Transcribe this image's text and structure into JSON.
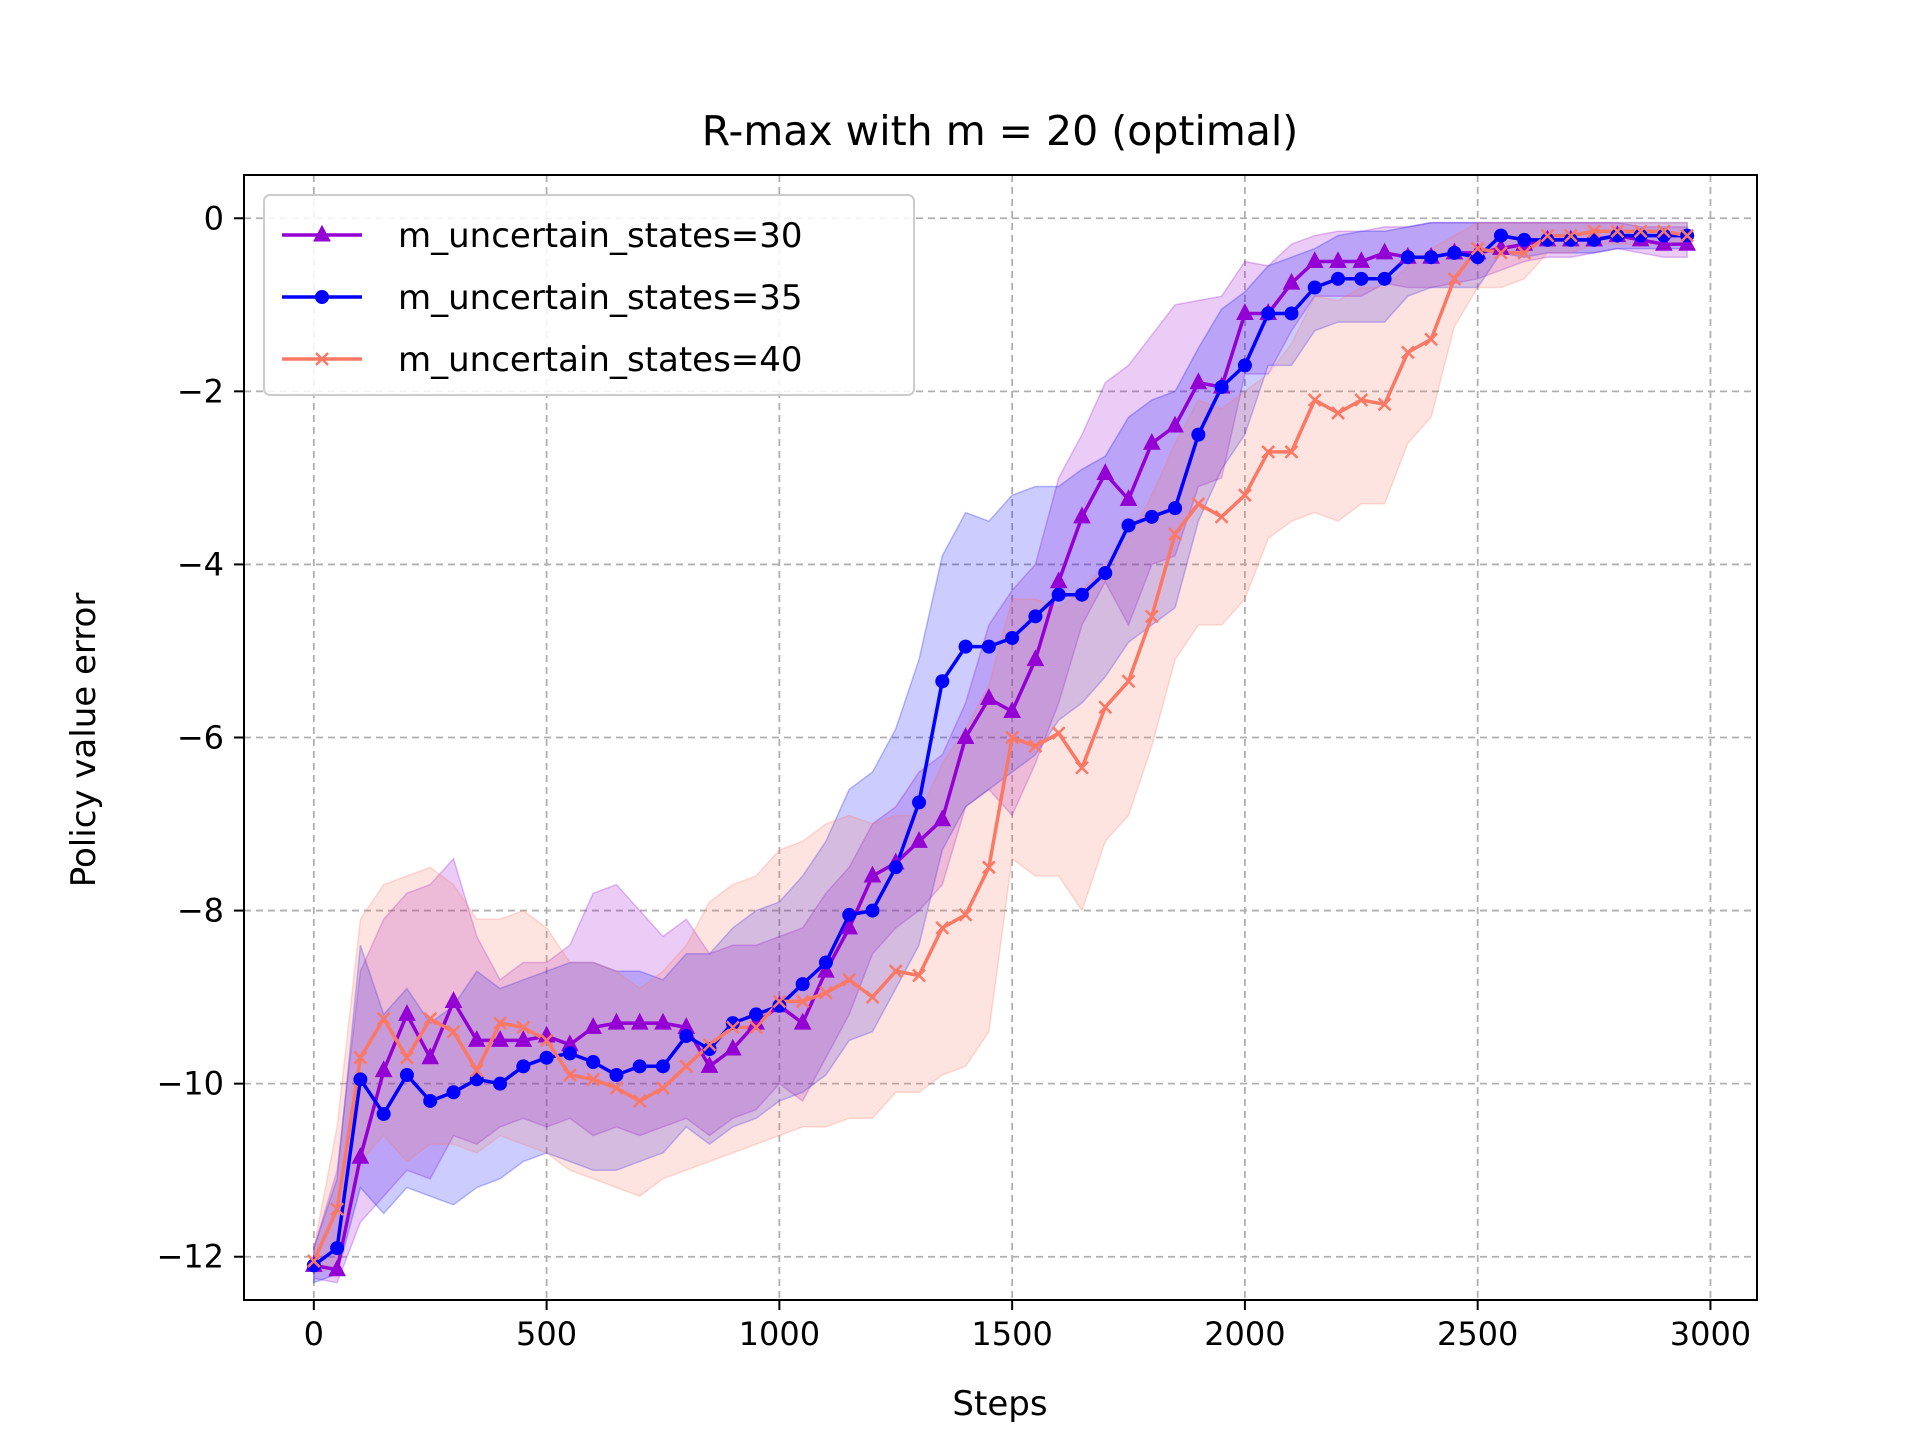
{
  "chart_data": {
    "type": "line",
    "title": "R-max with m = 20 (optimal)",
    "xlabel": "Steps",
    "ylabel": "Policy value error",
    "xlim": [
      -150,
      3100
    ],
    "ylim": [
      -12.5,
      0.5
    ],
    "xticks": [
      0,
      500,
      1000,
      1500,
      2000,
      2500,
      3000
    ],
    "yticks": [
      0,
      -2,
      -4,
      -6,
      -8,
      -10,
      -12
    ],
    "xtick_labels": [
      "0",
      "500",
      "1000",
      "1500",
      "2000",
      "2500",
      "3000"
    ],
    "ytick_labels": [
      "0",
      "−2",
      "−4",
      "−6",
      "−8",
      "−10",
      "−12"
    ],
    "grid": true,
    "legend_position": "top-left",
    "x": [
      0,
      50,
      100,
      150,
      200,
      250,
      300,
      350,
      400,
      450,
      500,
      550,
      600,
      650,
      700,
      750,
      800,
      850,
      900,
      950,
      1000,
      1050,
      1100,
      1150,
      1200,
      1250,
      1300,
      1350,
      1400,
      1450,
      1500,
      1550,
      1600,
      1650,
      1700,
      1750,
      1800,
      1850,
      1900,
      1950,
      2000,
      2050,
      2100,
      2150,
      2200,
      2250,
      2300,
      2350,
      2400,
      2450,
      2500,
      2550,
      2600,
      2650,
      2700,
      2750,
      2800,
      2850,
      2900,
      2950
    ],
    "series": [
      {
        "name": "m_uncertain_states=30",
        "color": "#9400d3",
        "marker": "triangle",
        "values": [
          -12.1,
          -12.15,
          -10.85,
          -9.85,
          -9.2,
          -9.7,
          -9.05,
          -9.5,
          -9.5,
          -9.5,
          -9.45,
          -9.55,
          -9.35,
          -9.3,
          -9.3,
          -9.3,
          -9.35,
          -9.8,
          -9.6,
          -9.3,
          -9.1,
          -9.3,
          -8.7,
          -8.2,
          -7.6,
          -7.45,
          -7.2,
          -6.95,
          -6.0,
          -5.55,
          -5.7,
          -5.1,
          -4.2,
          -3.45,
          -2.95,
          -3.25,
          -2.6,
          -2.4,
          -1.9,
          -1.95,
          -1.1,
          -1.1,
          -0.75,
          -0.5,
          -0.5,
          -0.5,
          -0.4,
          -0.45,
          -0.45,
          -0.4,
          -0.4,
          -0.35,
          -0.3,
          -0.25,
          -0.25,
          -0.25,
          -0.2,
          -0.25,
          -0.3,
          -0.3
        ],
        "upper": [
          -11.9,
          -11.0,
          -8.7,
          -8.1,
          -7.8,
          -7.7,
          -7.4,
          -8.3,
          -8.8,
          -8.6,
          -8.6,
          -8.4,
          -7.8,
          -7.7,
          -8.0,
          -8.3,
          -8.1,
          -8.5,
          -8.4,
          -8.4,
          -8.3,
          -8.2,
          -7.8,
          -7.5,
          -7.0,
          -6.8,
          -6.4,
          -6.2,
          -5.6,
          -4.7,
          -4.3,
          -4.0,
          -3.0,
          -2.5,
          -1.9,
          -1.7,
          -1.35,
          -1.0,
          -0.95,
          -0.9,
          -0.5,
          -0.55,
          -0.3,
          -0.2,
          -0.15,
          -0.15,
          -0.1,
          -0.1,
          -0.05,
          -0.05,
          -0.05,
          -0.05,
          -0.05,
          -0.05,
          -0.05,
          -0.05,
          -0.05,
          -0.1,
          -0.1,
          -0.1
        ],
        "lower": [
          -12.25,
          -12.3,
          -11.6,
          -11.3,
          -11.0,
          -11.1,
          -10.6,
          -10.7,
          -10.5,
          -10.4,
          -10.5,
          -10.4,
          -10.6,
          -10.5,
          -10.6,
          -10.5,
          -10.4,
          -10.6,
          -10.4,
          -10.3,
          -10.0,
          -10.2,
          -9.7,
          -9.2,
          -8.5,
          -8.2,
          -8.0,
          -7.7,
          -6.8,
          -6.6,
          -6.9,
          -6.3,
          -5.6,
          -4.7,
          -4.2,
          -4.7,
          -4.0,
          -3.9,
          -3.1,
          -3.0,
          -1.8,
          -1.8,
          -1.3,
          -0.9,
          -0.9,
          -0.9,
          -0.75,
          -0.8,
          -0.8,
          -0.75,
          -0.7,
          -0.6,
          -0.5,
          -0.45,
          -0.45,
          -0.4,
          -0.35,
          -0.4,
          -0.45,
          -0.45
        ]
      },
      {
        "name": "m_uncertain_states=35",
        "color": "#0000ff",
        "marker": "circle",
        "values": [
          -12.1,
          -11.9,
          -9.95,
          -10.35,
          -9.9,
          -10.2,
          -10.1,
          -9.95,
          -10.0,
          -9.8,
          -9.7,
          -9.65,
          -9.75,
          -9.9,
          -9.8,
          -9.8,
          -9.45,
          -9.6,
          -9.3,
          -9.2,
          -9.1,
          -8.85,
          -8.6,
          -8.05,
          -8.0,
          -7.5,
          -6.75,
          -5.35,
          -4.95,
          -4.95,
          -4.85,
          -4.6,
          -4.35,
          -4.35,
          -4.1,
          -3.55,
          -3.45,
          -3.35,
          -2.5,
          -1.95,
          -1.7,
          -1.1,
          -1.1,
          -0.8,
          -0.7,
          -0.7,
          -0.7,
          -0.45,
          -0.45,
          -0.4,
          -0.45,
          -0.2,
          -0.25,
          -0.25,
          -0.25,
          -0.25,
          -0.2,
          -0.2,
          -0.2,
          -0.2
        ],
        "upper": [
          -11.9,
          -11.1,
          -8.4,
          -9.2,
          -8.9,
          -9.3,
          -9.1,
          -8.7,
          -8.9,
          -8.8,
          -8.7,
          -8.6,
          -8.6,
          -8.7,
          -8.7,
          -8.8,
          -8.5,
          -8.5,
          -8.2,
          -8.0,
          -7.9,
          -7.6,
          -7.2,
          -6.6,
          -6.4,
          -5.9,
          -5.1,
          -3.9,
          -3.4,
          -3.5,
          -3.2,
          -3.1,
          -3.1,
          -2.9,
          -2.75,
          -2.3,
          -2.1,
          -2.0,
          -1.5,
          -1.05,
          -0.85,
          -0.55,
          -0.45,
          -0.35,
          -0.2,
          -0.15,
          -0.15,
          -0.1,
          -0.05,
          -0.05,
          -0.05,
          -0.05,
          -0.05,
          -0.05,
          -0.05,
          -0.05,
          -0.05,
          -0.05,
          -0.05,
          -0.05
        ],
        "lower": [
          -12.3,
          -12.2,
          -11.2,
          -11.5,
          -11.2,
          -11.3,
          -11.4,
          -11.2,
          -11.1,
          -10.9,
          -10.8,
          -10.9,
          -11.0,
          -11.0,
          -10.9,
          -10.8,
          -10.5,
          -10.7,
          -10.5,
          -10.4,
          -10.2,
          -10.1,
          -9.9,
          -9.5,
          -9.4,
          -8.9,
          -8.4,
          -7.3,
          -6.8,
          -6.6,
          -6.4,
          -6.2,
          -5.8,
          -5.6,
          -5.3,
          -4.9,
          -4.7,
          -4.5,
          -3.5,
          -2.9,
          -2.5,
          -1.7,
          -1.7,
          -1.3,
          -1.2,
          -1.2,
          -1.2,
          -0.9,
          -0.8,
          -0.8,
          -0.8,
          -0.4,
          -0.45,
          -0.4,
          -0.4,
          -0.4,
          -0.35,
          -0.35,
          -0.35,
          -0.35
        ]
      },
      {
        "name": "m_uncertain_states=40",
        "color": "#fa7864",
        "marker": "x",
        "values": [
          -12.05,
          -11.45,
          -9.7,
          -9.25,
          -9.7,
          -9.25,
          -9.4,
          -9.85,
          -9.3,
          -9.35,
          -9.5,
          -9.9,
          -9.95,
          -10.05,
          -10.2,
          -10.05,
          -9.8,
          -9.55,
          -9.35,
          -9.35,
          -9.05,
          -9.05,
          -8.95,
          -8.8,
          -9.0,
          -8.7,
          -8.75,
          -8.2,
          -8.05,
          -7.5,
          -6.0,
          -6.1,
          -5.95,
          -6.35,
          -5.65,
          -5.35,
          -4.6,
          -3.65,
          -3.3,
          -3.45,
          -3.2,
          -2.7,
          -2.7,
          -2.1,
          -2.25,
          -2.1,
          -2.15,
          -1.55,
          -1.4,
          -0.7,
          -0.35,
          -0.4,
          -0.4,
          -0.2,
          -0.2,
          -0.15,
          -0.15,
          -0.15,
          -0.15,
          -0.2
        ],
        "upper": [
          -11.9,
          -10.5,
          -8.1,
          -7.7,
          -7.6,
          -7.5,
          -7.7,
          -8.1,
          -8.1,
          -8.0,
          -8.2,
          -8.6,
          -8.6,
          -8.7,
          -8.9,
          -8.7,
          -8.4,
          -7.9,
          -7.7,
          -7.6,
          -7.3,
          -7.2,
          -7.0,
          -6.9,
          -7.0,
          -6.9,
          -6.9,
          -6.3,
          -5.9,
          -5.4,
          -4.4,
          -4.4,
          -4.5,
          -4.3,
          -4.0,
          -3.7,
          -3.2,
          -2.6,
          -2.1,
          -2.2,
          -2.0,
          -1.8,
          -1.45,
          -0.9,
          -0.95,
          -0.8,
          -0.8,
          -0.55,
          -0.35,
          -0.2,
          -0.05,
          -0.05,
          -0.05,
          -0.05,
          -0.05,
          -0.05,
          -0.05,
          -0.05,
          -0.05,
          -0.05
        ],
        "lower": [
          -12.2,
          -12.1,
          -10.9,
          -10.6,
          -10.9,
          -10.7,
          -10.7,
          -10.8,
          -10.6,
          -10.7,
          -10.8,
          -11.0,
          -11.1,
          -11.2,
          -11.3,
          -11.1,
          -11.0,
          -10.9,
          -10.8,
          -10.7,
          -10.6,
          -10.5,
          -10.5,
          -10.4,
          -10.4,
          -10.1,
          -10.1,
          -9.9,
          -9.8,
          -9.4,
          -7.4,
          -7.6,
          -7.6,
          -8.0,
          -7.2,
          -6.9,
          -6.1,
          -5.1,
          -4.7,
          -4.7,
          -4.4,
          -3.7,
          -3.5,
          -3.4,
          -3.5,
          -3.3,
          -3.3,
          -2.6,
          -2.3,
          -1.25,
          -0.8,
          -0.8,
          -0.7,
          -0.4,
          -0.4,
          -0.3,
          -0.3,
          -0.3,
          -0.3,
          -0.3
        ]
      }
    ]
  }
}
